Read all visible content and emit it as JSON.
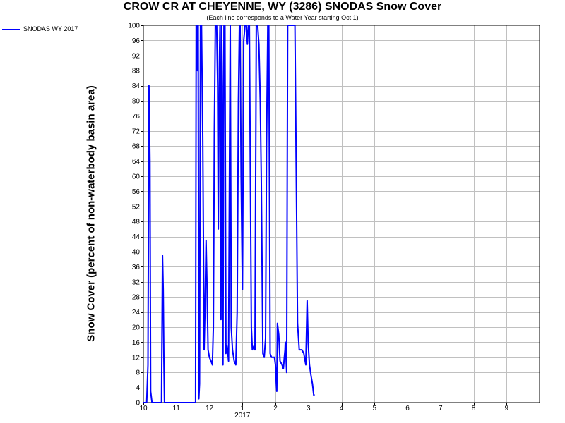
{
  "chart_data": {
    "type": "line",
    "title": "CROW CR AT CHEYENNE, WY (3286) SNODAS Snow Cover",
    "subtitle": "(Each line corresponds to a Water Year starting Oct 1)",
    "ylabel": "Snow Cover (percent of non-waterbody basin area)",
    "xlabel": "",
    "ylim": [
      0,
      100
    ],
    "xlim": [
      0,
      12
    ],
    "grid": true,
    "legend_position": "top-left, outside plot",
    "y_ticks": [
      0,
      4,
      8,
      12,
      16,
      20,
      24,
      28,
      32,
      36,
      40,
      44,
      48,
      52,
      56,
      60,
      64,
      68,
      72,
      76,
      80,
      84,
      88,
      92,
      96,
      100
    ],
    "x_ticks": [
      {
        "month": 0,
        "label": "10"
      },
      {
        "month": 1,
        "label": "11"
      },
      {
        "month": 2,
        "label": "12"
      },
      {
        "month": 3,
        "label": "1",
        "sublabel": "2017"
      },
      {
        "month": 4,
        "label": "2"
      },
      {
        "month": 5,
        "label": "3"
      },
      {
        "month": 6,
        "label": "4"
      },
      {
        "month": 7,
        "label": "5"
      },
      {
        "month": 8,
        "label": "6"
      },
      {
        "month": 9,
        "label": "7"
      },
      {
        "month": 10,
        "label": "8"
      },
      {
        "month": 11,
        "label": "9"
      }
    ],
    "series": [
      {
        "name": "SNODAS WY 2017",
        "color": "#0000ff",
        "points": [
          [
            0.0,
            0
          ],
          [
            0.1,
            0
          ],
          [
            0.14,
            10
          ],
          [
            0.17,
            84
          ],
          [
            0.2,
            64
          ],
          [
            0.22,
            3
          ],
          [
            0.26,
            0
          ],
          [
            0.3,
            0
          ],
          [
            0.5,
            0
          ],
          [
            0.55,
            0
          ],
          [
            0.58,
            39
          ],
          [
            0.6,
            30
          ],
          [
            0.62,
            12
          ],
          [
            0.64,
            0
          ],
          [
            0.7,
            0
          ],
          [
            1.2,
            0
          ],
          [
            1.55,
            0
          ],
          [
            1.58,
            0
          ],
          [
            1.6,
            100
          ],
          [
            1.62,
            100
          ],
          [
            1.64,
            88
          ],
          [
            1.66,
            100
          ],
          [
            1.68,
            1
          ],
          [
            1.7,
            5
          ],
          [
            1.73,
            100
          ],
          [
            1.76,
            100
          ],
          [
            1.8,
            70
          ],
          [
            1.84,
            14
          ],
          [
            1.87,
            26
          ],
          [
            1.9,
            43
          ],
          [
            1.93,
            30
          ],
          [
            1.96,
            14
          ],
          [
            2.0,
            12
          ],
          [
            2.05,
            11
          ],
          [
            2.09,
            10
          ],
          [
            2.12,
            20
          ],
          [
            2.15,
            72
          ],
          [
            2.18,
            100
          ],
          [
            2.22,
            100
          ],
          [
            2.25,
            84
          ],
          [
            2.27,
            46
          ],
          [
            2.3,
            88
          ],
          [
            2.32,
            100
          ],
          [
            2.35,
            22
          ],
          [
            2.37,
            100
          ],
          [
            2.39,
            84
          ],
          [
            2.41,
            10
          ],
          [
            2.44,
            100
          ],
          [
            2.47,
            100
          ],
          [
            2.5,
            13
          ],
          [
            2.53,
            15
          ],
          [
            2.56,
            13
          ],
          [
            2.58,
            11
          ],
          [
            2.6,
            50
          ],
          [
            2.63,
            100
          ],
          [
            2.66,
            20
          ],
          [
            2.7,
            14
          ],
          [
            2.75,
            11
          ],
          [
            2.8,
            10
          ],
          [
            2.84,
            24
          ],
          [
            2.88,
            80
          ],
          [
            2.91,
            100
          ],
          [
            2.93,
            100
          ],
          [
            2.96,
            60
          ],
          [
            3.0,
            30
          ],
          [
            3.04,
            96
          ],
          [
            3.08,
            100
          ],
          [
            3.12,
            100
          ],
          [
            3.15,
            95
          ],
          [
            3.18,
            100
          ],
          [
            3.21,
            100
          ],
          [
            3.24,
            60
          ],
          [
            3.27,
            20
          ],
          [
            3.3,
            14
          ],
          [
            3.35,
            15
          ],
          [
            3.38,
            14
          ],
          [
            3.42,
            100
          ],
          [
            3.46,
            100
          ],
          [
            3.5,
            95
          ],
          [
            3.54,
            80
          ],
          [
            3.57,
            60
          ],
          [
            3.62,
            13
          ],
          [
            3.66,
            12
          ],
          [
            3.7,
            17
          ],
          [
            3.73,
            68
          ],
          [
            3.77,
            100
          ],
          [
            3.8,
            100
          ],
          [
            3.84,
            13
          ],
          [
            3.88,
            12
          ],
          [
            3.92,
            12
          ],
          [
            3.97,
            12
          ],
          [
            4.0,
            10
          ],
          [
            4.02,
            6
          ],
          [
            4.04,
            3
          ],
          [
            4.06,
            21
          ],
          [
            4.1,
            18
          ],
          [
            4.14,
            11
          ],
          [
            4.2,
            10
          ],
          [
            4.24,
            9
          ],
          [
            4.27,
            12
          ],
          [
            4.29,
            14
          ],
          [
            4.3,
            16
          ],
          [
            4.34,
            8
          ],
          [
            4.37,
            100
          ],
          [
            4.4,
            100
          ],
          [
            4.43,
            100
          ],
          [
            4.5,
            100
          ],
          [
            4.55,
            100
          ],
          [
            4.59,
            100
          ],
          [
            4.63,
            60
          ],
          [
            4.67,
            21
          ],
          [
            4.72,
            14
          ],
          [
            4.8,
            14
          ],
          [
            4.86,
            13
          ],
          [
            4.92,
            10
          ],
          [
            4.96,
            27
          ],
          [
            4.99,
            16
          ],
          [
            5.03,
            10
          ],
          [
            5.08,
            7
          ],
          [
            5.12,
            5
          ],
          [
            5.16,
            2
          ],
          [
            5.19,
            2
          ]
        ]
      }
    ]
  }
}
